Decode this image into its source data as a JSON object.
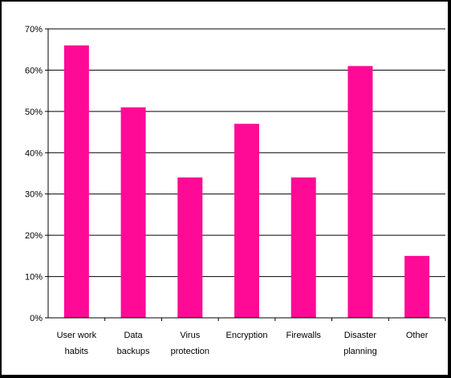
{
  "chart_data": {
    "type": "bar",
    "categories": [
      [
        "User work",
        "habits"
      ],
      [
        "Data",
        "backups"
      ],
      [
        "Virus",
        "protection"
      ],
      [
        "Encryption"
      ],
      [
        "Firewalls"
      ],
      [
        "Disaster",
        "planning"
      ],
      [
        "Other"
      ]
    ],
    "values": [
      66,
      51,
      34,
      47,
      34,
      61,
      15
    ],
    "y_ticks": [
      "0%",
      "10%",
      "20%",
      "30%",
      "40%",
      "50%",
      "60%",
      "70%"
    ],
    "ylim": [
      0,
      70
    ],
    "grid": true,
    "bar_color": "#ff0a96",
    "title": "",
    "xlabel": "",
    "ylabel": ""
  }
}
